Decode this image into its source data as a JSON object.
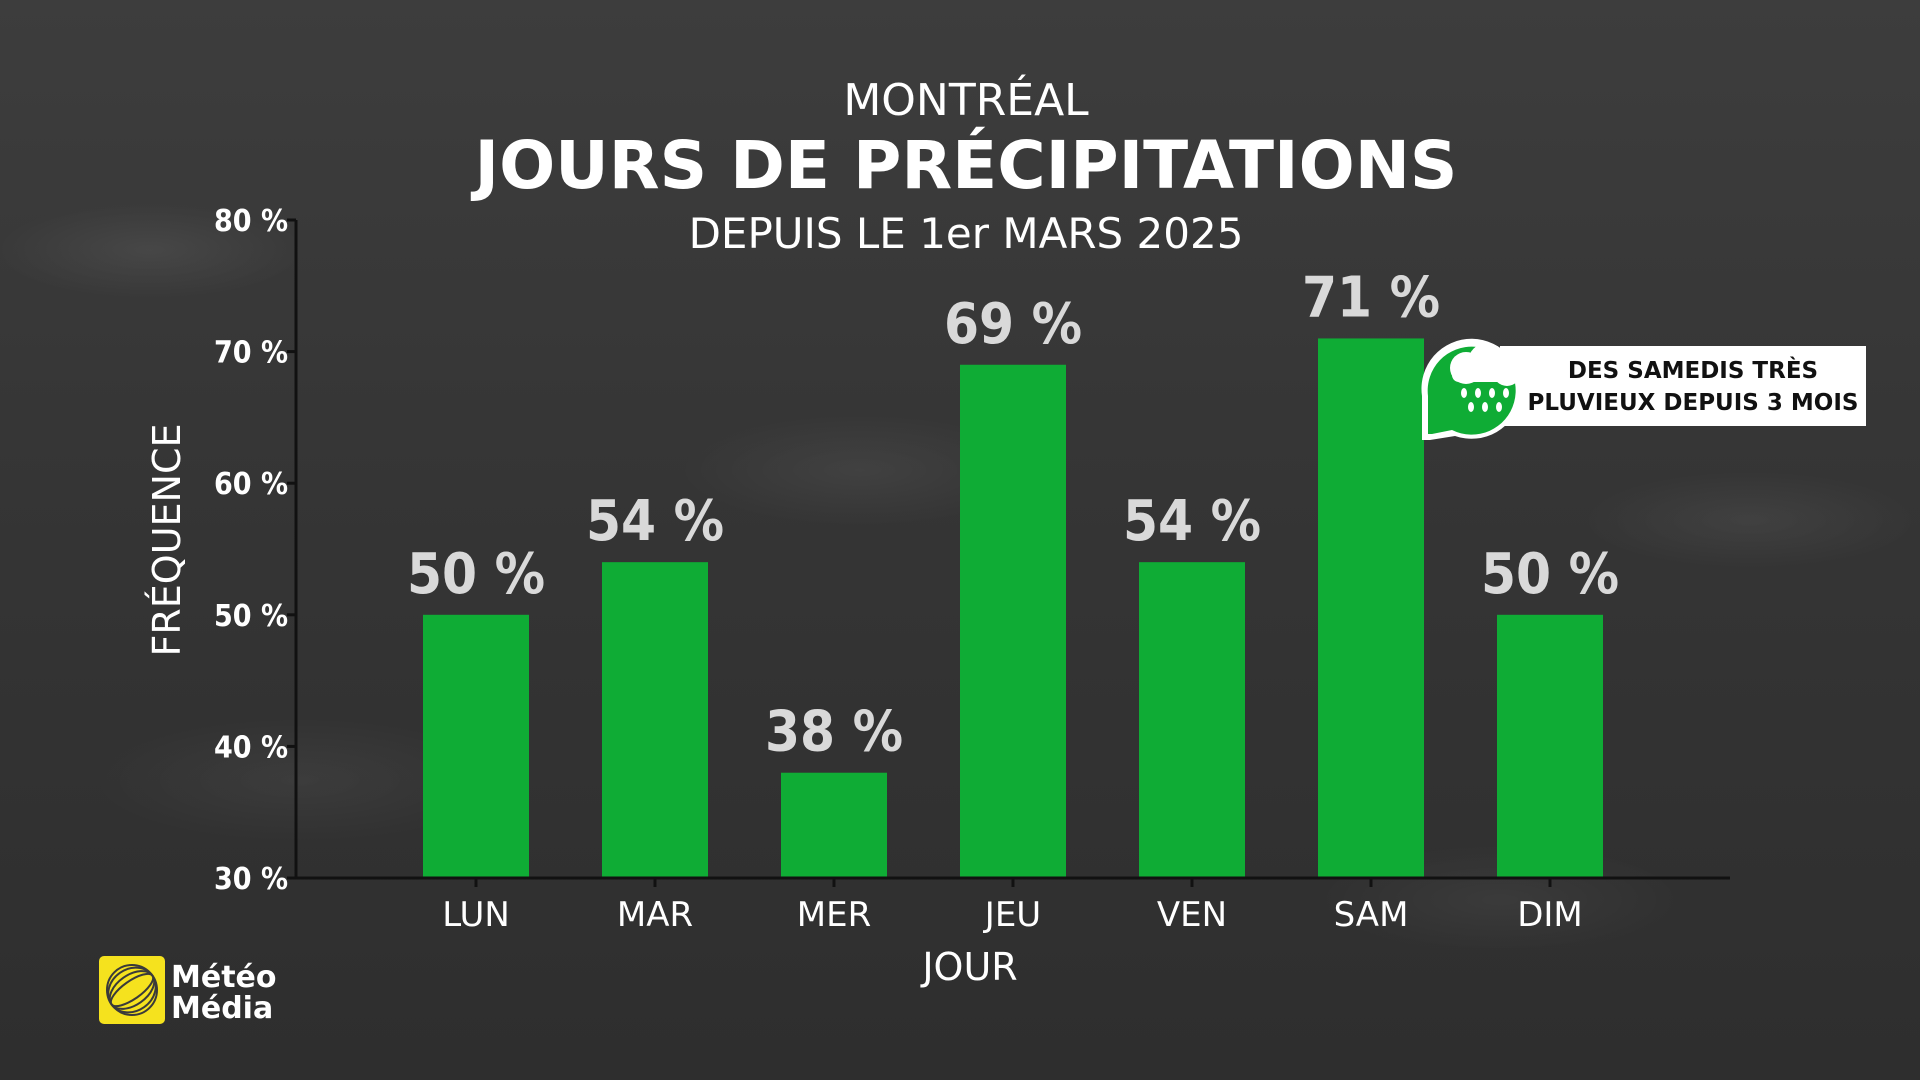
{
  "chart_data": {
    "type": "bar",
    "title_city": "MONTRÉAL",
    "title": "JOURS DE PRÉCIPITATIONS",
    "subtitle": "DEPUIS LE 1er MARS 2025",
    "xlabel": "JOUR",
    "ylabel": "FRÉQUENCE",
    "categories": [
      "LUN",
      "MAR",
      "MER",
      "JEU",
      "VEN",
      "SAM",
      "DIM"
    ],
    "values": [
      50,
      54,
      38,
      69,
      54,
      71,
      50
    ],
    "value_labels": [
      "50 %",
      "54 %",
      "38 %",
      "69 %",
      "54 %",
      "71 %",
      "50 %"
    ],
    "ylim": [
      30,
      80
    ],
    "yticks": [
      30,
      40,
      50,
      60,
      70,
      80
    ],
    "ytick_labels": [
      "30 %",
      "40 %",
      "50 %",
      "60 %",
      "70 %",
      "80 %"
    ],
    "grid": false,
    "bar_color": "#0fac35"
  },
  "annotation": {
    "line1": "DES SAMEDIS TRÈS",
    "line2": "PLUVIEUX DEPUIS 3 MOIS",
    "icon": "rain-cloud-icon",
    "accent": "#0fac35"
  },
  "logo": {
    "line1": "Météo",
    "line2": "Média",
    "color": "#f5e21e"
  }
}
